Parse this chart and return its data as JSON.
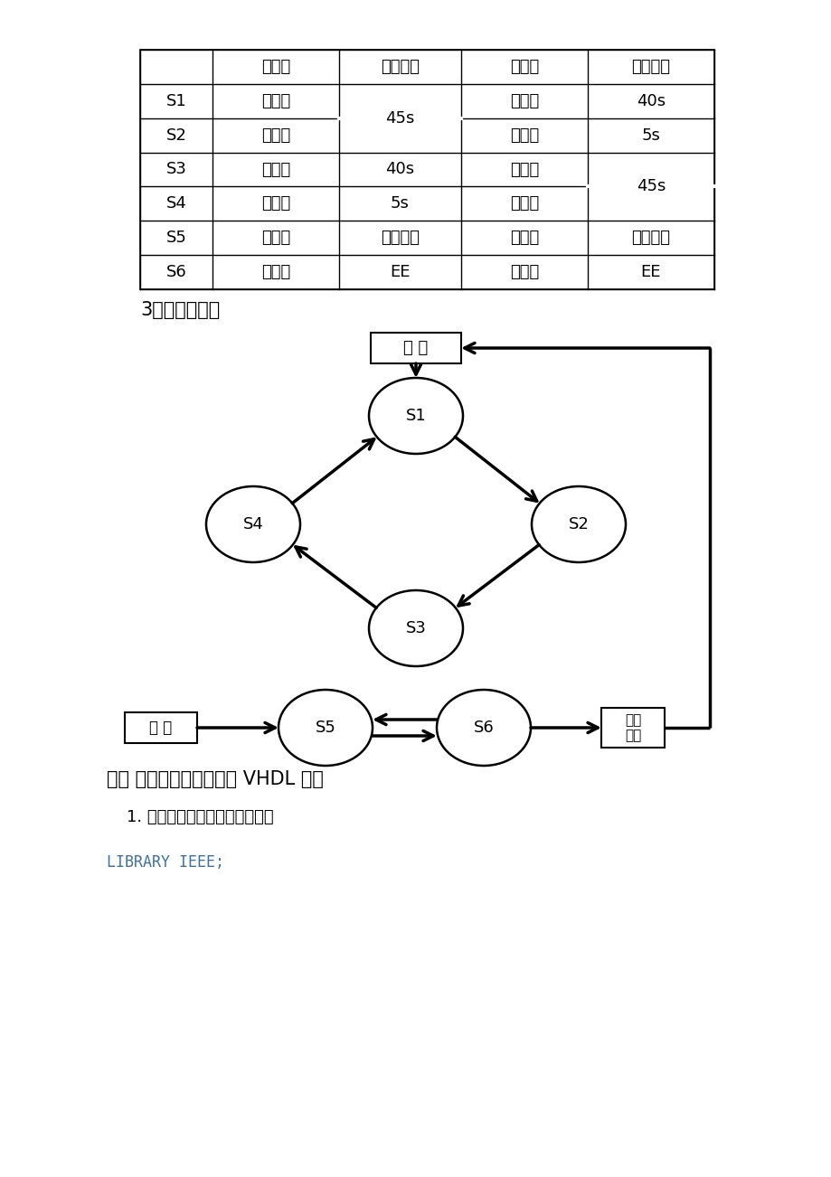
{
  "bg_color": "#ffffff",
  "table_headers": [
    "",
    "指示灯",
    "亮灯时间",
    "指示灯",
    "亮灯时间"
  ],
  "rows_data": [
    [
      "S1",
      "红灯亮",
      null,
      "綠灯亮",
      "40s"
    ],
    [
      "S2",
      "红灯亮",
      null,
      "黄灯亮",
      "5s"
    ],
    [
      "S3",
      "綠灯亮",
      "40s",
      "红灯亮",
      null
    ],
    [
      "S4",
      "黄灯亮",
      "5s",
      "红灯亮",
      null
    ],
    [
      "S5",
      "红灯亮",
      "当前时间",
      "红灯亮",
      "当前时间"
    ],
    [
      "S6",
      "红灯亮",
      "EE",
      "红灯亮",
      "EE"
    ]
  ],
  "merged_12": "45s",
  "merged_34": "45s",
  "section_title": "3、状态转换图",
  "section5_title": "五、 交通灯的控制电路的 VHDL 程序",
  "subsection_title": "1. 主控制电路模块的程序如下：",
  "code_line": "LIBRARY IEEE;",
  "code_color": "#4070a0",
  "fuwei_label": "复 位",
  "guzhang_label": "故 障",
  "anfuwei_label": "按复\n位键"
}
